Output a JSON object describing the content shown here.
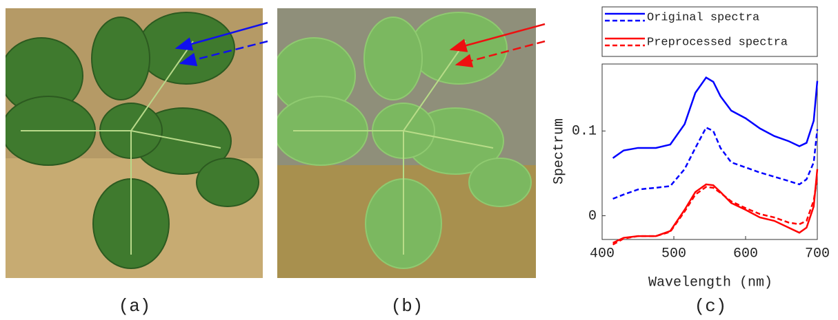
{
  "captions": [
    "(a)",
    "(b)",
    "(c)"
  ],
  "chart_data": {
    "type": "line",
    "xlabel": "Wavelength (nm)",
    "ylabel": "Spectrum",
    "x": [
      415,
      430,
      450,
      475,
      495,
      515,
      530,
      545,
      555,
      565,
      580,
      600,
      620,
      640,
      660,
      675,
      685,
      695,
      700
    ],
    "series": [
      {
        "name": "Original spectra",
        "color": "#0000ff",
        "dash": false,
        "values": [
          0.068,
          0.077,
          0.08,
          0.08,
          0.084,
          0.108,
          0.145,
          0.163,
          0.158,
          0.141,
          0.124,
          0.115,
          0.103,
          0.094,
          0.088,
          0.082,
          0.086,
          0.112,
          0.159
        ]
      },
      {
        "name": "Original spectra",
        "color": "#0000ff",
        "dash": true,
        "values": [
          0.02,
          0.025,
          0.031,
          0.033,
          0.035,
          0.055,
          0.08,
          0.104,
          0.1,
          0.08,
          0.063,
          0.057,
          0.051,
          0.046,
          0.041,
          0.037,
          0.043,
          0.063,
          0.102
        ]
      },
      {
        "name": "Preprocessed spectra",
        "color": "#ff0000",
        "dash": false,
        "values": [
          -0.032,
          -0.026,
          -0.024,
          -0.024,
          -0.018,
          0.007,
          0.028,
          0.037,
          0.036,
          0.028,
          0.015,
          0.007,
          -0.002,
          -0.006,
          -0.014,
          -0.02,
          -0.014,
          0.011,
          0.055
        ]
      },
      {
        "name": "Preprocessed spectra",
        "color": "#ff0000",
        "dash": true,
        "values": [
          -0.034,
          -0.027,
          -0.024,
          -0.024,
          -0.019,
          0.005,
          0.025,
          0.034,
          0.033,
          0.027,
          0.017,
          0.009,
          0.002,
          -0.002,
          -0.008,
          -0.01,
          -0.006,
          0.018,
          0.045
        ]
      }
    ],
    "xlim": [
      400,
      700
    ],
    "xticks": [
      400,
      500,
      600,
      700
    ],
    "ylim": [
      -0.028,
      0.179
    ],
    "yticks": [
      0,
      0.1
    ],
    "grid": false,
    "legend": "top"
  }
}
